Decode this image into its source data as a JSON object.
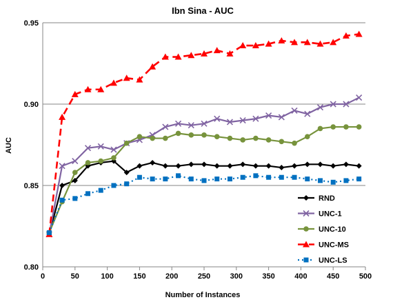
{
  "chart_data": {
    "type": "line",
    "title": "Ibn Sina - AUC",
    "xlabel": "Number of Instances",
    "ylabel": "AUC",
    "xlim": [
      0,
      500
    ],
    "ylim": [
      0.8,
      0.95
    ],
    "x_ticks": [
      "0",
      "50",
      "100",
      "150",
      "200",
      "250",
      "300",
      "350",
      "400",
      "450",
      "500"
    ],
    "y_ticks": [
      "0.80",
      "0.85",
      "0.90",
      "0.95"
    ],
    "grid": "horizontal",
    "legend_position": "bottom-right",
    "x": [
      10,
      30,
      50,
      70,
      90,
      110,
      130,
      150,
      170,
      190,
      210,
      230,
      250,
      270,
      290,
      310,
      330,
      350,
      370,
      390,
      410,
      430,
      450,
      470,
      490
    ],
    "series": [
      {
        "name": "RND",
        "color": "#000000",
        "dash": "solid",
        "marker": "diamond",
        "values": [
          0.82,
          0.85,
          0.853,
          0.862,
          0.864,
          0.865,
          0.858,
          0.862,
          0.864,
          0.862,
          0.862,
          0.863,
          0.863,
          0.862,
          0.862,
          0.863,
          0.862,
          0.862,
          0.861,
          0.862,
          0.863,
          0.863,
          0.862,
          0.863,
          0.862
        ]
      },
      {
        "name": "UNC-1",
        "color": "#8064a2",
        "dash": "solid",
        "marker": "x",
        "values": [
          0.82,
          0.862,
          0.865,
          0.873,
          0.874,
          0.872,
          0.876,
          0.878,
          0.881,
          0.886,
          0.888,
          0.887,
          0.888,
          0.891,
          0.889,
          0.89,
          0.891,
          0.893,
          0.892,
          0.896,
          0.894,
          0.898,
          0.9,
          0.9,
          0.904
        ]
      },
      {
        "name": "UNC-10",
        "color": "#77933c",
        "dash": "solid",
        "marker": "circle",
        "values": [
          0.821,
          0.84,
          0.858,
          0.864,
          0.865,
          0.867,
          0.876,
          0.88,
          0.879,
          0.879,
          0.882,
          0.881,
          0.881,
          0.88,
          0.879,
          0.878,
          0.879,
          0.878,
          0.877,
          0.876,
          0.88,
          0.885,
          0.886,
          0.886,
          0.886
        ]
      },
      {
        "name": "UNC-MS",
        "color": "#ff0000",
        "dash": "dashed",
        "marker": "triangle",
        "values": [
          0.82,
          0.892,
          0.906,
          0.909,
          0.909,
          0.913,
          0.916,
          0.915,
          0.923,
          0.929,
          0.929,
          0.93,
          0.931,
          0.933,
          0.931,
          0.936,
          0.936,
          0.937,
          0.939,
          0.938,
          0.938,
          0.937,
          0.938,
          0.942,
          0.943
        ]
      },
      {
        "name": "UNC-LS",
        "color": "#0070c0",
        "dash": "dotted",
        "marker": "square",
        "values": [
          0.821,
          0.841,
          0.842,
          0.845,
          0.847,
          0.85,
          0.851,
          0.855,
          0.854,
          0.854,
          0.856,
          0.854,
          0.853,
          0.854,
          0.854,
          0.855,
          0.856,
          0.855,
          0.855,
          0.855,
          0.854,
          0.853,
          0.852,
          0.853,
          0.854
        ]
      }
    ]
  }
}
